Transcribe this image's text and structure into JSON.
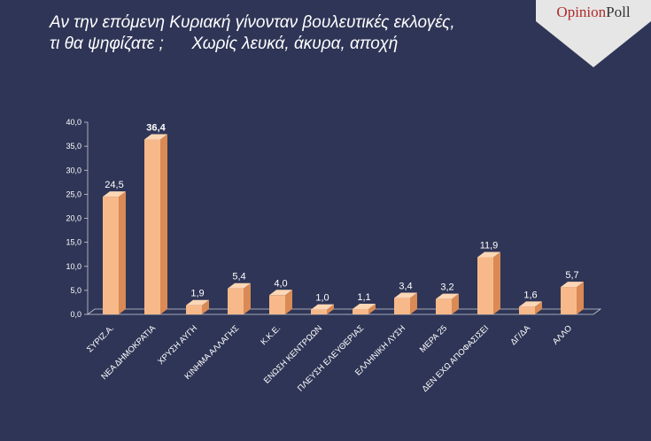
{
  "header": {
    "title_line1": "Αν την επόμενη Κυριακή γίνονταν βουλευτικές εκλογές,",
    "title_line2": "τι θα ψηφίζατε ;      Χωρίς λευκά, άκυρα, αποχή"
  },
  "logo": {
    "text_part1": "Opinion",
    "text_part2": "Poll",
    "color_part1": "#b02a2a",
    "color_part2": "#333333"
  },
  "colors": {
    "background": "#2f3556",
    "bar_front": "#f8b98a",
    "bar_side": "#d98a55",
    "bar_top": "#fcd7b6",
    "text": "#ffffff"
  },
  "chart_data": {
    "type": "bar",
    "categories": [
      "ΣΥΡΙΖ.Α.",
      "ΝΕΑ ΔΗΜΟΚΡΑΤΙΑ",
      "ΧΡΥΣΗ ΑΥΓΗ",
      "ΚΙΝΗΜΑ ΑΛΛΑΓΗΣ",
      "Κ.Κ.Ε.",
      "ΕΝΩΣΗ ΚΕΝΤΡΩΩΝ",
      "ΠΛΕΥΣΗ ΕΛΕΥΘΕΡΙΑΣ",
      "ΕΛΛΗΝΙΚΗ ΛΥΣΗ",
      "ΜΕΡΑ 25",
      "ΔΕΝ ΕΧΩ ΑΠΟΦΑΣΙΣΕΙ",
      "ΔΓ/ΔΑ",
      "ΑΛΛΟ"
    ],
    "values": [
      24.5,
      36.4,
      1.9,
      5.4,
      4.0,
      1.0,
      1.1,
      3.4,
      3.2,
      11.9,
      1.6,
      5.7
    ],
    "value_labels": [
      "24,5",
      "36,4",
      "1,9",
      "5,4",
      "4,0",
      "1,0",
      "1,1",
      "3,4",
      "3,2",
      "11,9",
      "1,6",
      "5,7"
    ],
    "y_ticks": [
      "0,0",
      "5,0",
      "10,0",
      "15,0",
      "20,0",
      "25,0",
      "30,0",
      "35,0",
      "40,0"
    ],
    "ylim": [
      0,
      40
    ],
    "highlight_index": 1
  }
}
